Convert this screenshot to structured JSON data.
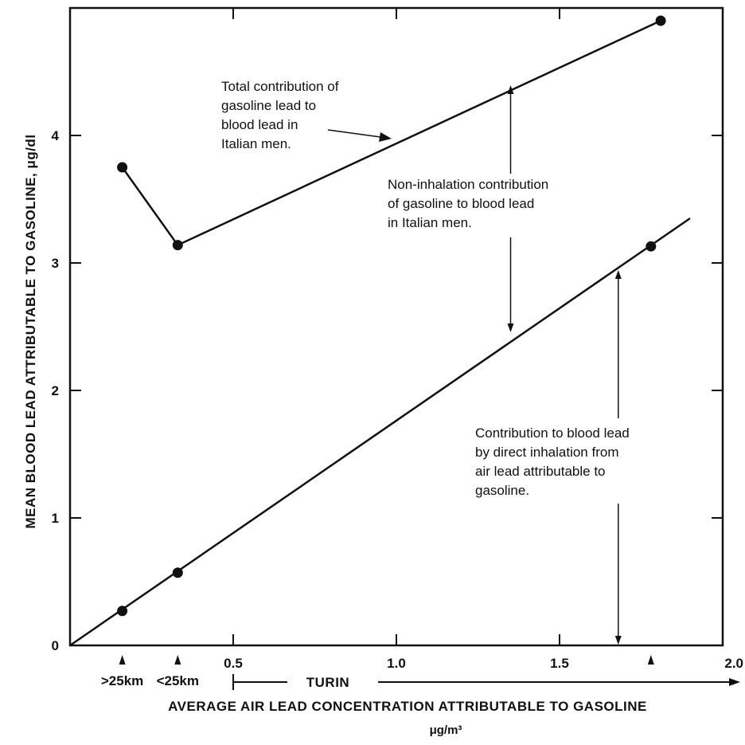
{
  "chart_data": {
    "type": "line",
    "title": "",
    "xlabel": "AVERAGE AIR LEAD CONCENTRATION ATTRIBUTABLE TO GASOLINE",
    "xunit": "μg/m³",
    "ylabel": "MEAN BLOOD LEAD ATTRIBUTABLE TO GASOLINE, μg/dl",
    "xlim": [
      0,
      2.0
    ],
    "ylim": [
      0,
      5.0
    ],
    "grid": false,
    "x_ticks": [
      {
        "value": 0.5,
        "label": "0.5"
      },
      {
        "value": 1.0,
        "label": "1.0"
      },
      {
        "value": 1.5,
        "label": "1.5"
      },
      {
        "value": 2.0,
        "label": "2.0"
      }
    ],
    "y_ticks": [
      {
        "value": 0,
        "label": "0"
      },
      {
        "value": 1,
        "label": "1"
      },
      {
        "value": 2,
        "label": "2"
      },
      {
        "value": 3,
        "label": "3"
      },
      {
        "value": 4,
        "label": "4"
      }
    ],
    "series": [
      {
        "points": [
          {
            "x": 0.16,
            "y": 3.75
          },
          {
            "x": 0.33,
            "y": 3.14
          },
          {
            "x": 1.81,
            "y": 4.9
          }
        ]
      },
      {
        "line": [
          [
            0,
            0
          ],
          [
            1.9,
            3.35
          ]
        ],
        "points": [
          {
            "x": 0.16,
            "y": 0.27
          },
          {
            "x": 0.33,
            "y": 0.57
          },
          {
            "x": 1.78,
            "y": 3.13
          }
        ]
      }
    ],
    "location_markers": [
      {
        "x": 0.16,
        "label": ">25km"
      },
      {
        "x": 0.33,
        "label": "<25km"
      },
      {
        "x": 1.78,
        "label": ""
      }
    ],
    "range_label": {
      "text": "TURIN",
      "from": 0.5,
      "to": 2.0
    },
    "annotations": [
      {
        "lines": [
          "Total contribution of",
          "gasoline lead to",
          "blood lead in",
          "Italian men."
        ]
      },
      {
        "lines": [
          "Non-inhalation contribution",
          "of gasoline to blood lead",
          "in Italian men."
        ],
        "span": {
          "x": 1.35,
          "y_top": 4.4,
          "y_bottom": 2.45
        }
      },
      {
        "lines": [
          "Contribution to blood lead",
          "by direct inhalation from",
          "air lead attributable to",
          "gasoline."
        ],
        "span": {
          "x": 1.68,
          "y_top": 2.95,
          "y_bottom": 0
        }
      }
    ]
  }
}
